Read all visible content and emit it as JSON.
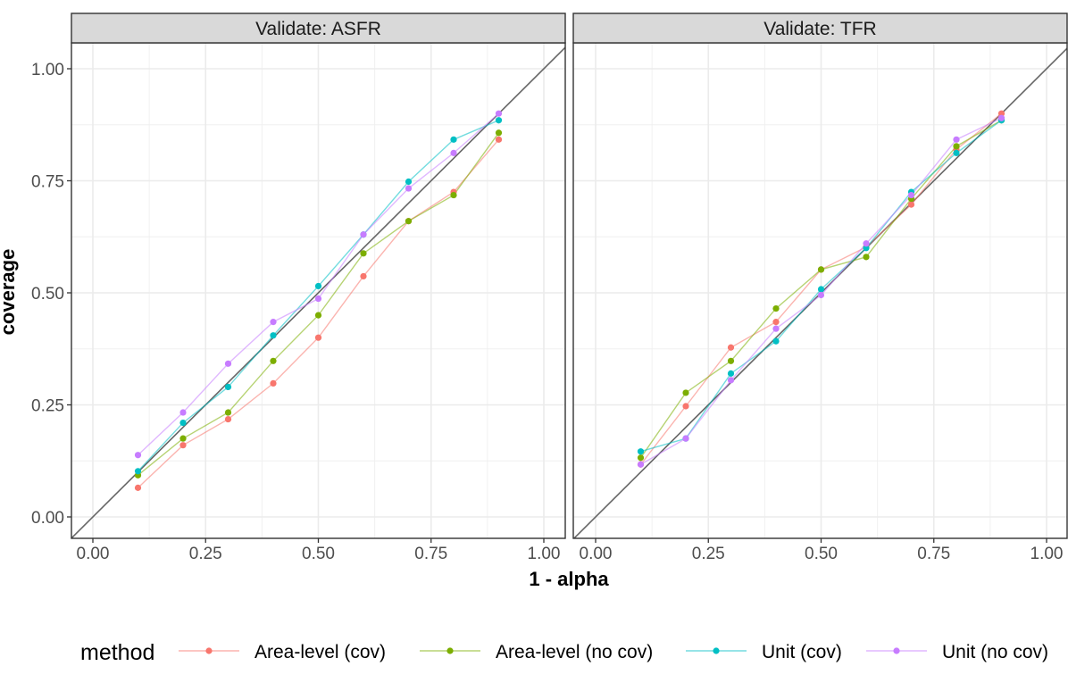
{
  "chart_data": {
    "type": "line",
    "xlabel": "1 - alpha",
    "ylabel": "coverage",
    "xlim": [
      0,
      1
    ],
    "ylim": [
      0,
      1
    ],
    "x_ticks": [
      "0.00",
      "0.25",
      "0.50",
      "0.75",
      "1.00"
    ],
    "y_ticks": [
      "0.00",
      "0.25",
      "0.50",
      "0.75",
      "1.00"
    ],
    "reference_line": "y = x",
    "legend": {
      "title": "method",
      "placement": "bottom",
      "entries": [
        "Area-level (cov)",
        "Area-level (no cov)",
        "Unit (cov)",
        "Unit (no cov)"
      ]
    },
    "colors": {
      "Area-level (cov)": "#F8766D",
      "Area-level (no cov)": "#7CAE00",
      "Unit (cov)": "#00BFC4",
      "Unit (no cov)": "#C77CFF"
    },
    "x": [
      0.1,
      0.2,
      0.3,
      0.4,
      0.5,
      0.6,
      0.7,
      0.8,
      0.9
    ],
    "panels": [
      {
        "title": "Validate: ASFR",
        "series": [
          {
            "name": "Area-level (cov)",
            "values": [
              0.065,
              0.16,
              0.218,
              0.298,
              0.4,
              0.537,
              0.66,
              0.725,
              0.842
            ]
          },
          {
            "name": "Area-level (no cov)",
            "values": [
              0.093,
              0.175,
              0.233,
              0.348,
              0.45,
              0.588,
              0.66,
              0.718,
              0.857
            ]
          },
          {
            "name": "Unit (cov)",
            "values": [
              0.102,
              0.21,
              0.29,
              0.405,
              0.515,
              0.63,
              0.748,
              0.842,
              0.885
            ]
          },
          {
            "name": "Unit (no cov)",
            "values": [
              0.138,
              0.233,
              0.342,
              0.435,
              0.487,
              0.63,
              0.733,
              0.812,
              0.9
            ]
          }
        ]
      },
      {
        "title": "Validate: TFR",
        "series": [
          {
            "name": "Area-level (cov)",
            "values": [
              0.117,
              0.247,
              0.378,
              0.435,
              0.552,
              0.602,
              0.697,
              0.82,
              0.9
            ]
          },
          {
            "name": "Area-level (no cov)",
            "values": [
              0.132,
              0.277,
              0.348,
              0.465,
              0.552,
              0.58,
              0.71,
              0.827,
              0.885
            ]
          },
          {
            "name": "Unit (cov)",
            "values": [
              0.146,
              0.175,
              0.32,
              0.392,
              0.508,
              0.6,
              0.725,
              0.812,
              0.885
            ]
          },
          {
            "name": "Unit (no cov)",
            "values": [
              0.117,
              0.175,
              0.305,
              0.42,
              0.495,
              0.61,
              0.718,
              0.842,
              0.89
            ]
          }
        ]
      }
    ]
  }
}
